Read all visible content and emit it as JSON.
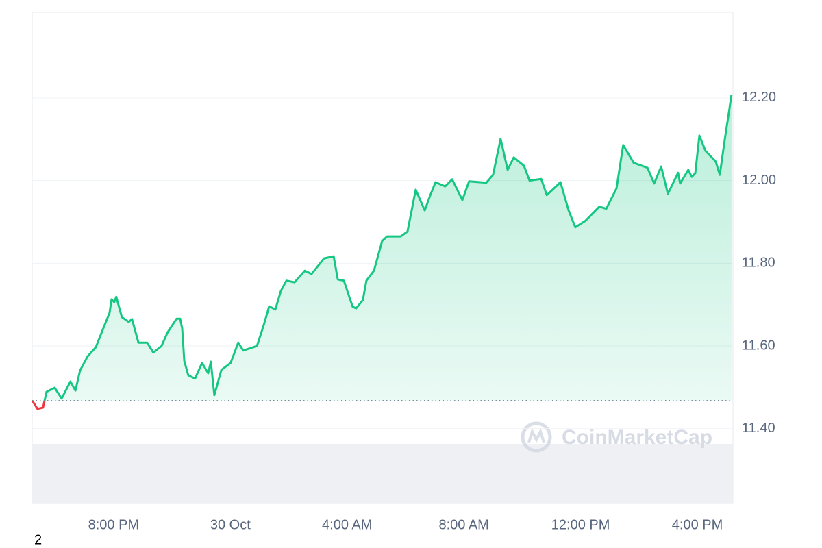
{
  "chart_data": {
    "type": "line",
    "x": [
      17.21,
      17.39,
      17.58,
      17.7,
      17.98,
      18.22,
      18.52,
      18.69,
      18.85,
      19.11,
      19.39,
      19.62,
      19.86,
      19.93,
      20.02,
      20.09,
      20.28,
      20.52,
      20.63,
      20.85,
      21.15,
      21.36,
      21.64,
      21.85,
      22.16,
      22.28,
      22.35,
      22.42,
      22.56,
      22.79,
      23.03,
      23.24,
      23.33,
      23.45,
      23.69,
      24.01,
      24.27,
      24.44,
      24.91,
      25.14,
      25.33,
      25.54,
      25.73,
      25.92,
      26.2,
      26.55,
      26.78,
      27.21,
      27.54,
      27.68,
      27.89,
      28.19,
      28.31,
      28.54,
      28.66,
      28.92,
      29.2,
      29.37,
      29.84,
      30.07,
      30.35,
      30.66,
      30.85,
      31.03,
      31.36,
      31.6,
      31.95,
      32.18,
      32.77,
      33.0,
      33.26,
      33.5,
      33.71,
      34.06,
      34.25,
      34.65,
      34.84,
      35.31,
      35.59,
      35.82,
      36.17,
      36.64,
      36.88,
      37.23,
      37.46,
      37.82,
      38.29,
      38.52,
      38.76,
      38.99,
      39.34,
      39.41,
      39.69,
      39.81,
      39.93,
      40.07,
      40.28,
      40.63,
      40.77,
      40.96,
      41.08,
      41.17
    ],
    "series": [
      {
        "color": "#16c784",
        "values": [
          11.468,
          11.448,
          11.451,
          11.489,
          11.499,
          11.473,
          11.514,
          11.492,
          11.541,
          11.575,
          11.597,
          11.638,
          11.68,
          11.713,
          11.706,
          11.719,
          11.67,
          11.658,
          11.665,
          11.608,
          11.608,
          11.584,
          11.6,
          11.633,
          11.666,
          11.666,
          11.642,
          11.564,
          11.529,
          11.521,
          11.559,
          11.534,
          11.562,
          11.481,
          11.542,
          11.559,
          11.608,
          11.589,
          11.6,
          11.65,
          11.696,
          11.688,
          11.733,
          11.758,
          11.754,
          11.782,
          11.774,
          11.812,
          11.817,
          11.761,
          11.758,
          11.695,
          11.691,
          11.711,
          11.758,
          11.782,
          11.854,
          11.865,
          11.865,
          11.877,
          11.978,
          11.928,
          11.965,
          11.996,
          11.986,
          12.003,
          11.953,
          11.998,
          11.995,
          12.014,
          12.101,
          12.026,
          12.056,
          12.036,
          12.0,
          12.004,
          11.965,
          11.996,
          11.928,
          11.887,
          11.903,
          11.937,
          11.932,
          11.981,
          12.086,
          12.043,
          12.031,
          11.993,
          12.034,
          11.968,
          12.019,
          11.993,
          12.026,
          12.009,
          12.018,
          12.109,
          12.072,
          12.046,
          12.014,
          12.109,
          12.164,
          12.208
        ]
      }
    ],
    "down_color": "#ea3943",
    "baseline": 11.468,
    "xlim": [
      17.21,
      41.22
    ],
    "ylim": [
      11.219,
      12.407
    ],
    "xticks": [
      {
        "value": 20,
        "label": "8:00 PM"
      },
      {
        "value": 24,
        "label": "30 Oct"
      },
      {
        "value": 28,
        "label": "4:00 AM"
      },
      {
        "value": 32,
        "label": "8:00 AM"
      },
      {
        "value": 36,
        "label": "12:00 PM"
      },
      {
        "value": 40,
        "label": "4:00 PM"
      }
    ],
    "yticks": [
      {
        "value": 11.4,
        "label": "11.40"
      },
      {
        "value": 11.6,
        "label": "11.60"
      },
      {
        "value": 11.8,
        "label": "11.80"
      },
      {
        "value": 12.0,
        "label": "12.00"
      },
      {
        "value": 12.2,
        "label": "12.20"
      }
    ],
    "grid": true,
    "watermark": "CoinMarketCap",
    "footnote": "2"
  }
}
